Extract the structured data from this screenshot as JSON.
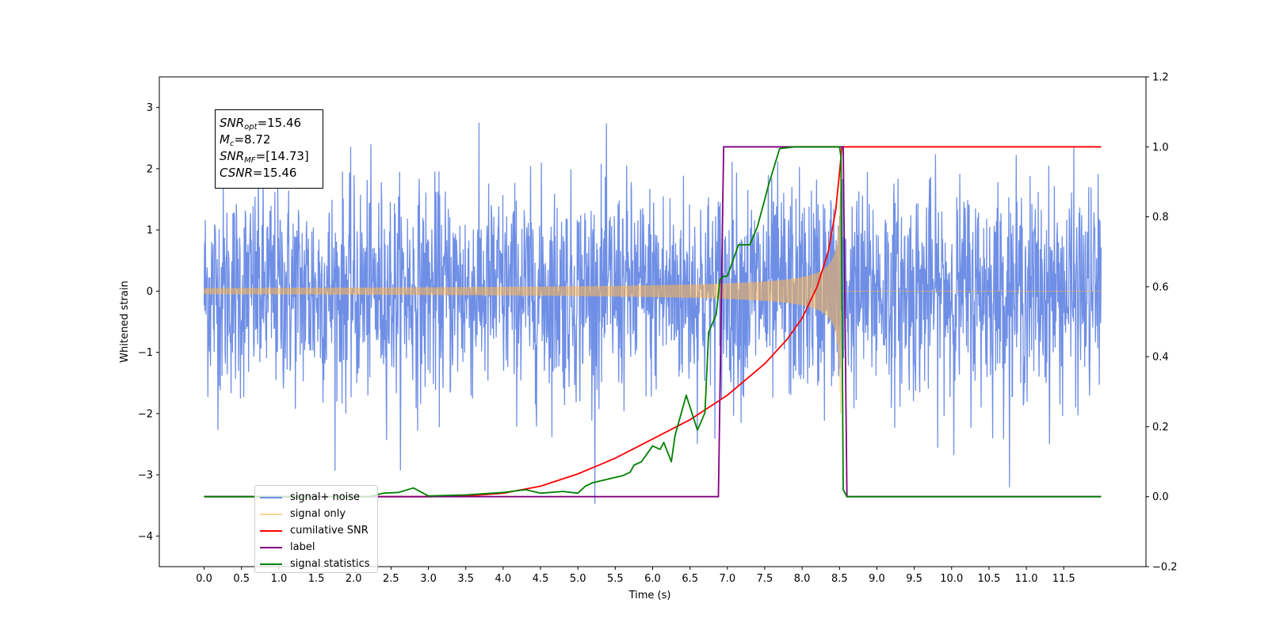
{
  "chart_data": {
    "type": "line",
    "xlabel": "Time (s)",
    "ylabel": "Whitened strain",
    "xlim": [
      -0.6,
      12.6
    ],
    "ylim": [
      -4.5,
      3.5
    ],
    "y2lim": [
      -0.2,
      1.2
    ],
    "x_ticks": [
      "0.0",
      "0.5",
      "1.0",
      "1.5",
      "2.0",
      "2.5",
      "3.0",
      "3.5",
      "4.0",
      "4.5",
      "5.0",
      "5.5",
      "6.0",
      "6.5",
      "7.0",
      "7.5",
      "8.0",
      "8.5",
      "9.0",
      "9.5",
      "10.0",
      "10.5",
      "11.0",
      "11.5"
    ],
    "y_ticks": [
      "3",
      "2",
      "1",
      "0",
      "−1",
      "−2",
      "−3",
      "−4"
    ],
    "y2_ticks": [
      "1.2",
      "1.0",
      "0.8",
      "0.6",
      "0.4",
      "0.2",
      "0.0",
      "−0.2"
    ],
    "annotation": {
      "snr_opt": {
        "sym": "SNR",
        "sub": "opt",
        "value": "=15.46"
      },
      "mc": {
        "sym": "M",
        "sub": "c",
        "value": "=8.72"
      },
      "snr_mf": {
        "sym": "SNR",
        "sub": "MF",
        "value": "=[14.73]"
      },
      "csnr": {
        "sym": "CSNR",
        "value": "=15.46"
      }
    },
    "legend": {
      "position": "lower-left",
      "entries": [
        "signal+ noise",
        "signal only",
        "cumilative SNR",
        "label",
        "signal statistics"
      ]
    },
    "colors": {
      "noise": "#6f8fe6",
      "signal": "#ffb74d",
      "cumulative_snr": "#ff0000",
      "label": "#800080",
      "statistics": "#008000"
    },
    "series": [
      {
        "name": "signal+ noise",
        "axis": "left",
        "x_range": [
          0.0,
          12.0
        ],
        "noise_peak_max": 3.15,
        "noise_peak_min": -4.1,
        "typical_band": [
          -1.4,
          1.5
        ]
      },
      {
        "name": "signal only",
        "axis": "left",
        "x_range": [
          0.0,
          12.0
        ],
        "merger_time": 8.52,
        "peak_amplitude": 2.0
      },
      {
        "name": "cumilative SNR",
        "axis": "right",
        "x": [
          0.0,
          2.0,
          3.0,
          3.5,
          4.0,
          4.5,
          5.0,
          5.5,
          6.0,
          6.5,
          7.0,
          7.5,
          7.8,
          8.0,
          8.2,
          8.35,
          8.45,
          8.52,
          8.53,
          12.0
        ],
        "y": [
          0.0,
          0.0,
          0.0,
          0.002,
          0.01,
          0.03,
          0.065,
          0.11,
          0.165,
          0.22,
          0.29,
          0.38,
          0.45,
          0.51,
          0.6,
          0.7,
          0.82,
          0.97,
          1.0,
          1.0
        ]
      },
      {
        "name": "label",
        "axis": "right",
        "x": [
          0.0,
          6.88,
          6.95,
          8.55,
          8.6,
          12.0
        ],
        "y": [
          0.0,
          0.0,
          1.0,
          1.0,
          0.0,
          0.0
        ]
      },
      {
        "name": "signal statistics",
        "axis": "right",
        "x": [
          0.0,
          2.2,
          2.4,
          2.6,
          2.8,
          3.0,
          3.5,
          4.0,
          4.3,
          4.5,
          4.8,
          5.0,
          5.1,
          5.2,
          5.3,
          5.4,
          5.5,
          5.6,
          5.7,
          5.75,
          5.85,
          5.95,
          6.0,
          6.1,
          6.15,
          6.25,
          6.3,
          6.45,
          6.6,
          6.7,
          6.75,
          6.85,
          6.9,
          6.95,
          7.0,
          7.1,
          7.15,
          7.3,
          7.4,
          7.5,
          7.55,
          7.65,
          7.7,
          7.9,
          8.0,
          8.5,
          8.52,
          8.55,
          8.6,
          12.0
        ],
        "y": [
          0.0,
          0.0,
          0.01,
          0.012,
          0.025,
          0.002,
          0.005,
          0.012,
          0.02,
          0.01,
          0.015,
          0.01,
          0.03,
          0.04,
          0.045,
          0.05,
          0.055,
          0.06,
          0.07,
          0.09,
          0.1,
          0.13,
          0.145,
          0.135,
          0.155,
          0.1,
          0.175,
          0.29,
          0.19,
          0.24,
          0.47,
          0.52,
          0.62,
          0.63,
          0.63,
          0.69,
          0.72,
          0.72,
          0.77,
          0.85,
          0.89,
          0.96,
          0.995,
          1.0,
          1.0,
          1.0,
          0.97,
          0.02,
          0.0,
          0.0
        ]
      }
    ]
  }
}
